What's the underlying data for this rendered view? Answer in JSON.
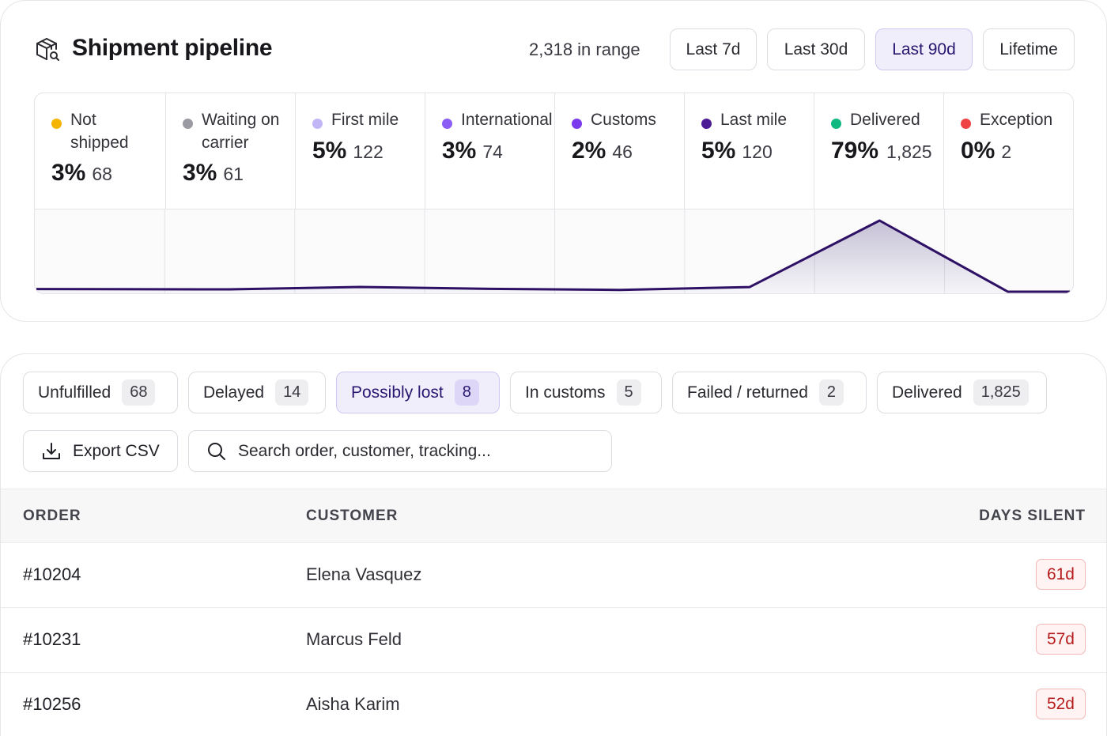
{
  "header": {
    "title": "Shipment pipeline",
    "range_count": "2,318 in range",
    "ranges": [
      "Last 7d",
      "Last 30d",
      "Last 90d",
      "Lifetime"
    ],
    "active_range": "Last 90d"
  },
  "stages": [
    {
      "label": "Not shipped",
      "pct": "3%",
      "count": "68",
      "color": "#f5b400"
    },
    {
      "label": "Waiting on carrier",
      "pct": "3%",
      "count": "61",
      "color": "#9a9aa2"
    },
    {
      "label": "First mile",
      "pct": "5%",
      "count": "122",
      "color": "#c3b6f7"
    },
    {
      "label": "International",
      "pct": "3%",
      "count": "74",
      "color": "#8b5cf6"
    },
    {
      "label": "Customs",
      "pct": "2%",
      "count": "46",
      "color": "#7c3aed"
    },
    {
      "label": "Last mile",
      "pct": "5%",
      "count": "120",
      "color": "#4c1d95"
    },
    {
      "label": "Delivered",
      "pct": "79%",
      "count": "1,825",
      "color": "#10b981"
    },
    {
      "label": "Exception",
      "pct": "0%",
      "count": "2",
      "color": "#ef4444"
    }
  ],
  "chart_data": {
    "type": "area",
    "x": [
      "Not shipped",
      "Waiting on carrier",
      "First mile",
      "International",
      "Customs",
      "Last mile",
      "Delivered",
      "Exception"
    ],
    "values": [
      68,
      61,
      122,
      74,
      46,
      120,
      1825,
      2
    ],
    "line_color": "#2e1065"
  },
  "filters": [
    {
      "label": "Unfulfilled",
      "count": "68"
    },
    {
      "label": "Delayed",
      "count": "14"
    },
    {
      "label": "Possibly lost",
      "count": "8"
    },
    {
      "label": "In customs",
      "count": "5"
    },
    {
      "label": "Failed / returned",
      "count": "2"
    },
    {
      "label": "Delivered",
      "count": "1,825"
    }
  ],
  "active_filter": "Possibly lost",
  "toolbar": {
    "export_label": "Export CSV",
    "search_placeholder": "Search order, customer, tracking..."
  },
  "table": {
    "columns": [
      "ORDER",
      "CUSTOMER",
      "DAYS SILENT"
    ],
    "rows": [
      {
        "order": "#10204",
        "customer": "Elena Vasquez",
        "days": "61d"
      },
      {
        "order": "#10231",
        "customer": "Marcus Feld",
        "days": "57d"
      },
      {
        "order": "#10256",
        "customer": "Aisha Karim",
        "days": "52d"
      }
    ]
  }
}
